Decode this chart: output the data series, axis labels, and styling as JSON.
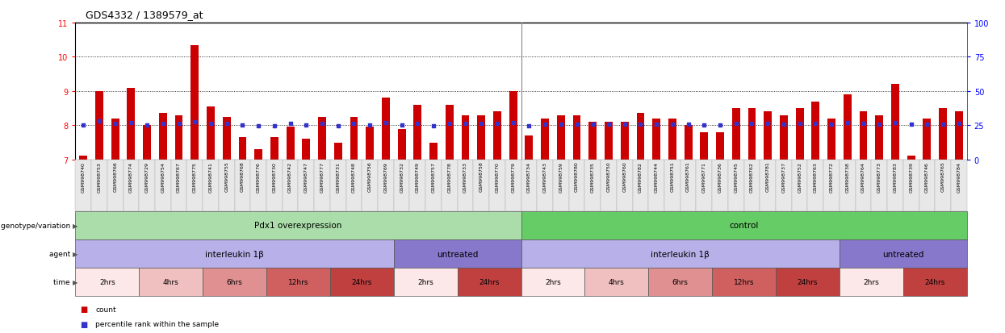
{
  "title": "GDS4332 / 1389579_at",
  "samples": [
    "GSM998740",
    "GSM998753",
    "GSM998766",
    "GSM998774",
    "GSM998729",
    "GSM998754",
    "GSM998767",
    "GSM998775",
    "GSM998741",
    "GSM998755",
    "GSM998768",
    "GSM998776",
    "GSM998730",
    "GSM998742",
    "GSM998747",
    "GSM998777",
    "GSM998731",
    "GSM998748",
    "GSM998756",
    "GSM998769",
    "GSM998732",
    "GSM998749",
    "GSM998757",
    "GSM998778",
    "GSM998733",
    "GSM998758",
    "GSM998770",
    "GSM998779",
    "GSM998734",
    "GSM998743",
    "GSM998759",
    "GSM998780",
    "GSM998735",
    "GSM998750",
    "GSM998760",
    "GSM998782",
    "GSM998744",
    "GSM998751",
    "GSM998761",
    "GSM998771",
    "GSM998736",
    "GSM998745",
    "GSM998762",
    "GSM998781",
    "GSM998737",
    "GSM998752",
    "GSM998763",
    "GSM998772",
    "GSM998738",
    "GSM998764",
    "GSM998773",
    "GSM998783",
    "GSM998739",
    "GSM998746",
    "GSM998765",
    "GSM998784"
  ],
  "bar_values": [
    7.1,
    9.0,
    8.2,
    9.1,
    8.0,
    8.35,
    8.3,
    10.35,
    8.55,
    8.25,
    7.65,
    7.3,
    7.65,
    7.95,
    7.6,
    8.25,
    7.5,
    8.25,
    7.95,
    8.8,
    7.9,
    8.6,
    7.5,
    8.6,
    8.3,
    8.3,
    8.4,
    9.0,
    7.7,
    8.2,
    8.3,
    8.3,
    8.1,
    8.1,
    8.1,
    8.35,
    8.2,
    8.2,
    8.0,
    7.8,
    7.8,
    8.5,
    8.5,
    8.4,
    8.3,
    8.5,
    8.7,
    8.2,
    8.9,
    8.4,
    8.3,
    9.2,
    7.1,
    8.2,
    8.5,
    8.4
  ],
  "dot_y_vals": [
    8.0,
    8.12,
    8.06,
    8.08,
    8.0,
    8.05,
    8.05,
    8.1,
    8.05,
    8.06,
    8.0,
    7.99,
    7.98,
    8.05,
    8.0,
    8.05,
    7.99,
    8.05,
    8.01,
    8.07,
    8.01,
    8.06,
    7.99,
    8.06,
    8.05,
    8.05,
    8.06,
    8.08,
    7.98,
    8.03,
    8.04,
    8.04,
    8.02,
    8.02,
    8.02,
    8.04,
    8.03,
    8.03,
    8.02,
    8.01,
    8.01,
    8.05,
    8.05,
    8.05,
    8.04,
    8.05,
    8.06,
    8.03,
    8.07,
    8.05,
    8.04,
    8.08,
    8.02,
    8.03,
    8.04,
    8.05
  ],
  "bar_color": "#cc0000",
  "dot_color": "#3333cc",
  "ylim_left": [
    7,
    11
  ],
  "ylim_right": [
    0,
    100
  ],
  "yticks_left": [
    7,
    8,
    9,
    10,
    11
  ],
  "yticks_right": [
    0,
    25,
    50,
    75,
    100
  ],
  "hlines": [
    8.0,
    9.0,
    10.0
  ],
  "separator_idx": 27.5,
  "genotype_groups": [
    {
      "label": "Pdx1 overexpression",
      "start": 0,
      "end": 28,
      "color": "#aaddaa"
    },
    {
      "label": "control",
      "start": 28,
      "end": 56,
      "color": "#66cc66"
    }
  ],
  "agent_groups": [
    {
      "label": "interleukin 1β",
      "start": 0,
      "end": 20,
      "color": "#b8b0e8"
    },
    {
      "label": "untreated",
      "start": 20,
      "end": 28,
      "color": "#8878cc"
    },
    {
      "label": "interleukin 1β",
      "start": 28,
      "end": 48,
      "color": "#b8b0e8"
    },
    {
      "label": "untreated",
      "start": 48,
      "end": 56,
      "color": "#8878cc"
    }
  ],
  "time_groups": [
    {
      "label": "2hrs",
      "start": 0,
      "end": 4,
      "color": "#fce8e8"
    },
    {
      "label": "4hrs",
      "start": 4,
      "end": 8,
      "color": "#f0c0c0"
    },
    {
      "label": "6hrs",
      "start": 8,
      "end": 12,
      "color": "#e09090"
    },
    {
      "label": "12hrs",
      "start": 12,
      "end": 16,
      "color": "#d06060"
    },
    {
      "label": "24hrs",
      "start": 16,
      "end": 20,
      "color": "#c04040"
    },
    {
      "label": "2hrs",
      "start": 20,
      "end": 24,
      "color": "#fce8e8"
    },
    {
      "label": "24hrs",
      "start": 24,
      "end": 28,
      "color": "#c04040"
    },
    {
      "label": "2hrs",
      "start": 28,
      "end": 32,
      "color": "#fce8e8"
    },
    {
      "label": "4hrs",
      "start": 32,
      "end": 36,
      "color": "#f0c0c0"
    },
    {
      "label": "6hrs",
      "start": 36,
      "end": 40,
      "color": "#e09090"
    },
    {
      "label": "12hrs",
      "start": 40,
      "end": 44,
      "color": "#d06060"
    },
    {
      "label": "24hrs",
      "start": 44,
      "end": 48,
      "color": "#c04040"
    },
    {
      "label": "2hrs",
      "start": 48,
      "end": 52,
      "color": "#fce8e8"
    },
    {
      "label": "24hrs",
      "start": 52,
      "end": 56,
      "color": "#c04040"
    }
  ],
  "left_labels": [
    "genotype/variation",
    "agent",
    "time"
  ],
  "legend_count_color": "#cc0000",
  "legend_pct_color": "#3333cc",
  "bg_color": "#ffffff",
  "tick_label_bg": "#e8e8e8",
  "tick_label_border": "#aaaaaa"
}
